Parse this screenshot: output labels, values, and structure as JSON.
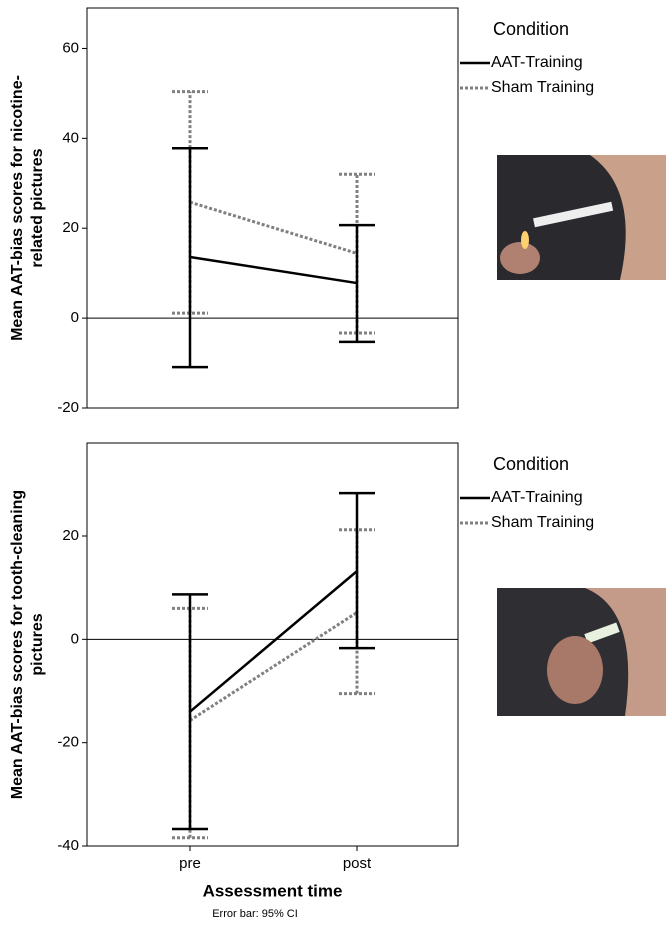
{
  "chart_data": [
    {
      "type": "line",
      "ylabel_lines": [
        "Mean AAT-bias scores for nicotine-",
        "related pictures"
      ],
      "legend_title": "Condition",
      "series": [
        {
          "name": "AAT-Training",
          "color": "#000000",
          "dash": "solid",
          "values": [
            13.6,
            7.8
          ],
          "ci_lower": [
            -10.9,
            -5.3
          ],
          "ci_upper": [
            37.8,
            20.7
          ]
        },
        {
          "name": "Sham Training",
          "color": "#808080",
          "dash": "dotted",
          "values": [
            25.8,
            14.4
          ],
          "ci_lower": [
            1.1,
            -3.3
          ],
          "ci_upper": [
            50.4,
            32.0
          ]
        }
      ],
      "ylim": [
        -20,
        69
      ],
      "yticks": [
        -20,
        0,
        20,
        40,
        60
      ],
      "hline": 0
    },
    {
      "type": "line",
      "ylabel_lines": [
        "Mean AAT-bias scores for tooth-cleaning",
        "pictures"
      ],
      "legend_title": "Condition",
      "categories": [
        "pre",
        "post"
      ],
      "xlabel": "Assessment time",
      "note": "Error bar: 95% CI",
      "series": [
        {
          "name": "AAT-Training",
          "color": "#000000",
          "dash": "solid",
          "values": [
            -14.0,
            13.2
          ],
          "ci_lower": [
            -36.7,
            -1.7
          ],
          "ci_upper": [
            8.7,
            28.3
          ]
        },
        {
          "name": "Sham Training",
          "color": "#808080",
          "dash": "dotted",
          "values": [
            -15.7,
            5.2
          ],
          "ci_lower": [
            -38.4,
            -10.5
          ],
          "ci_upper": [
            6.0,
            21.2
          ]
        }
      ],
      "ylim": [
        -40,
        38
      ],
      "yticks": [
        -40,
        -20,
        0,
        20
      ],
      "hline": 0
    }
  ]
}
